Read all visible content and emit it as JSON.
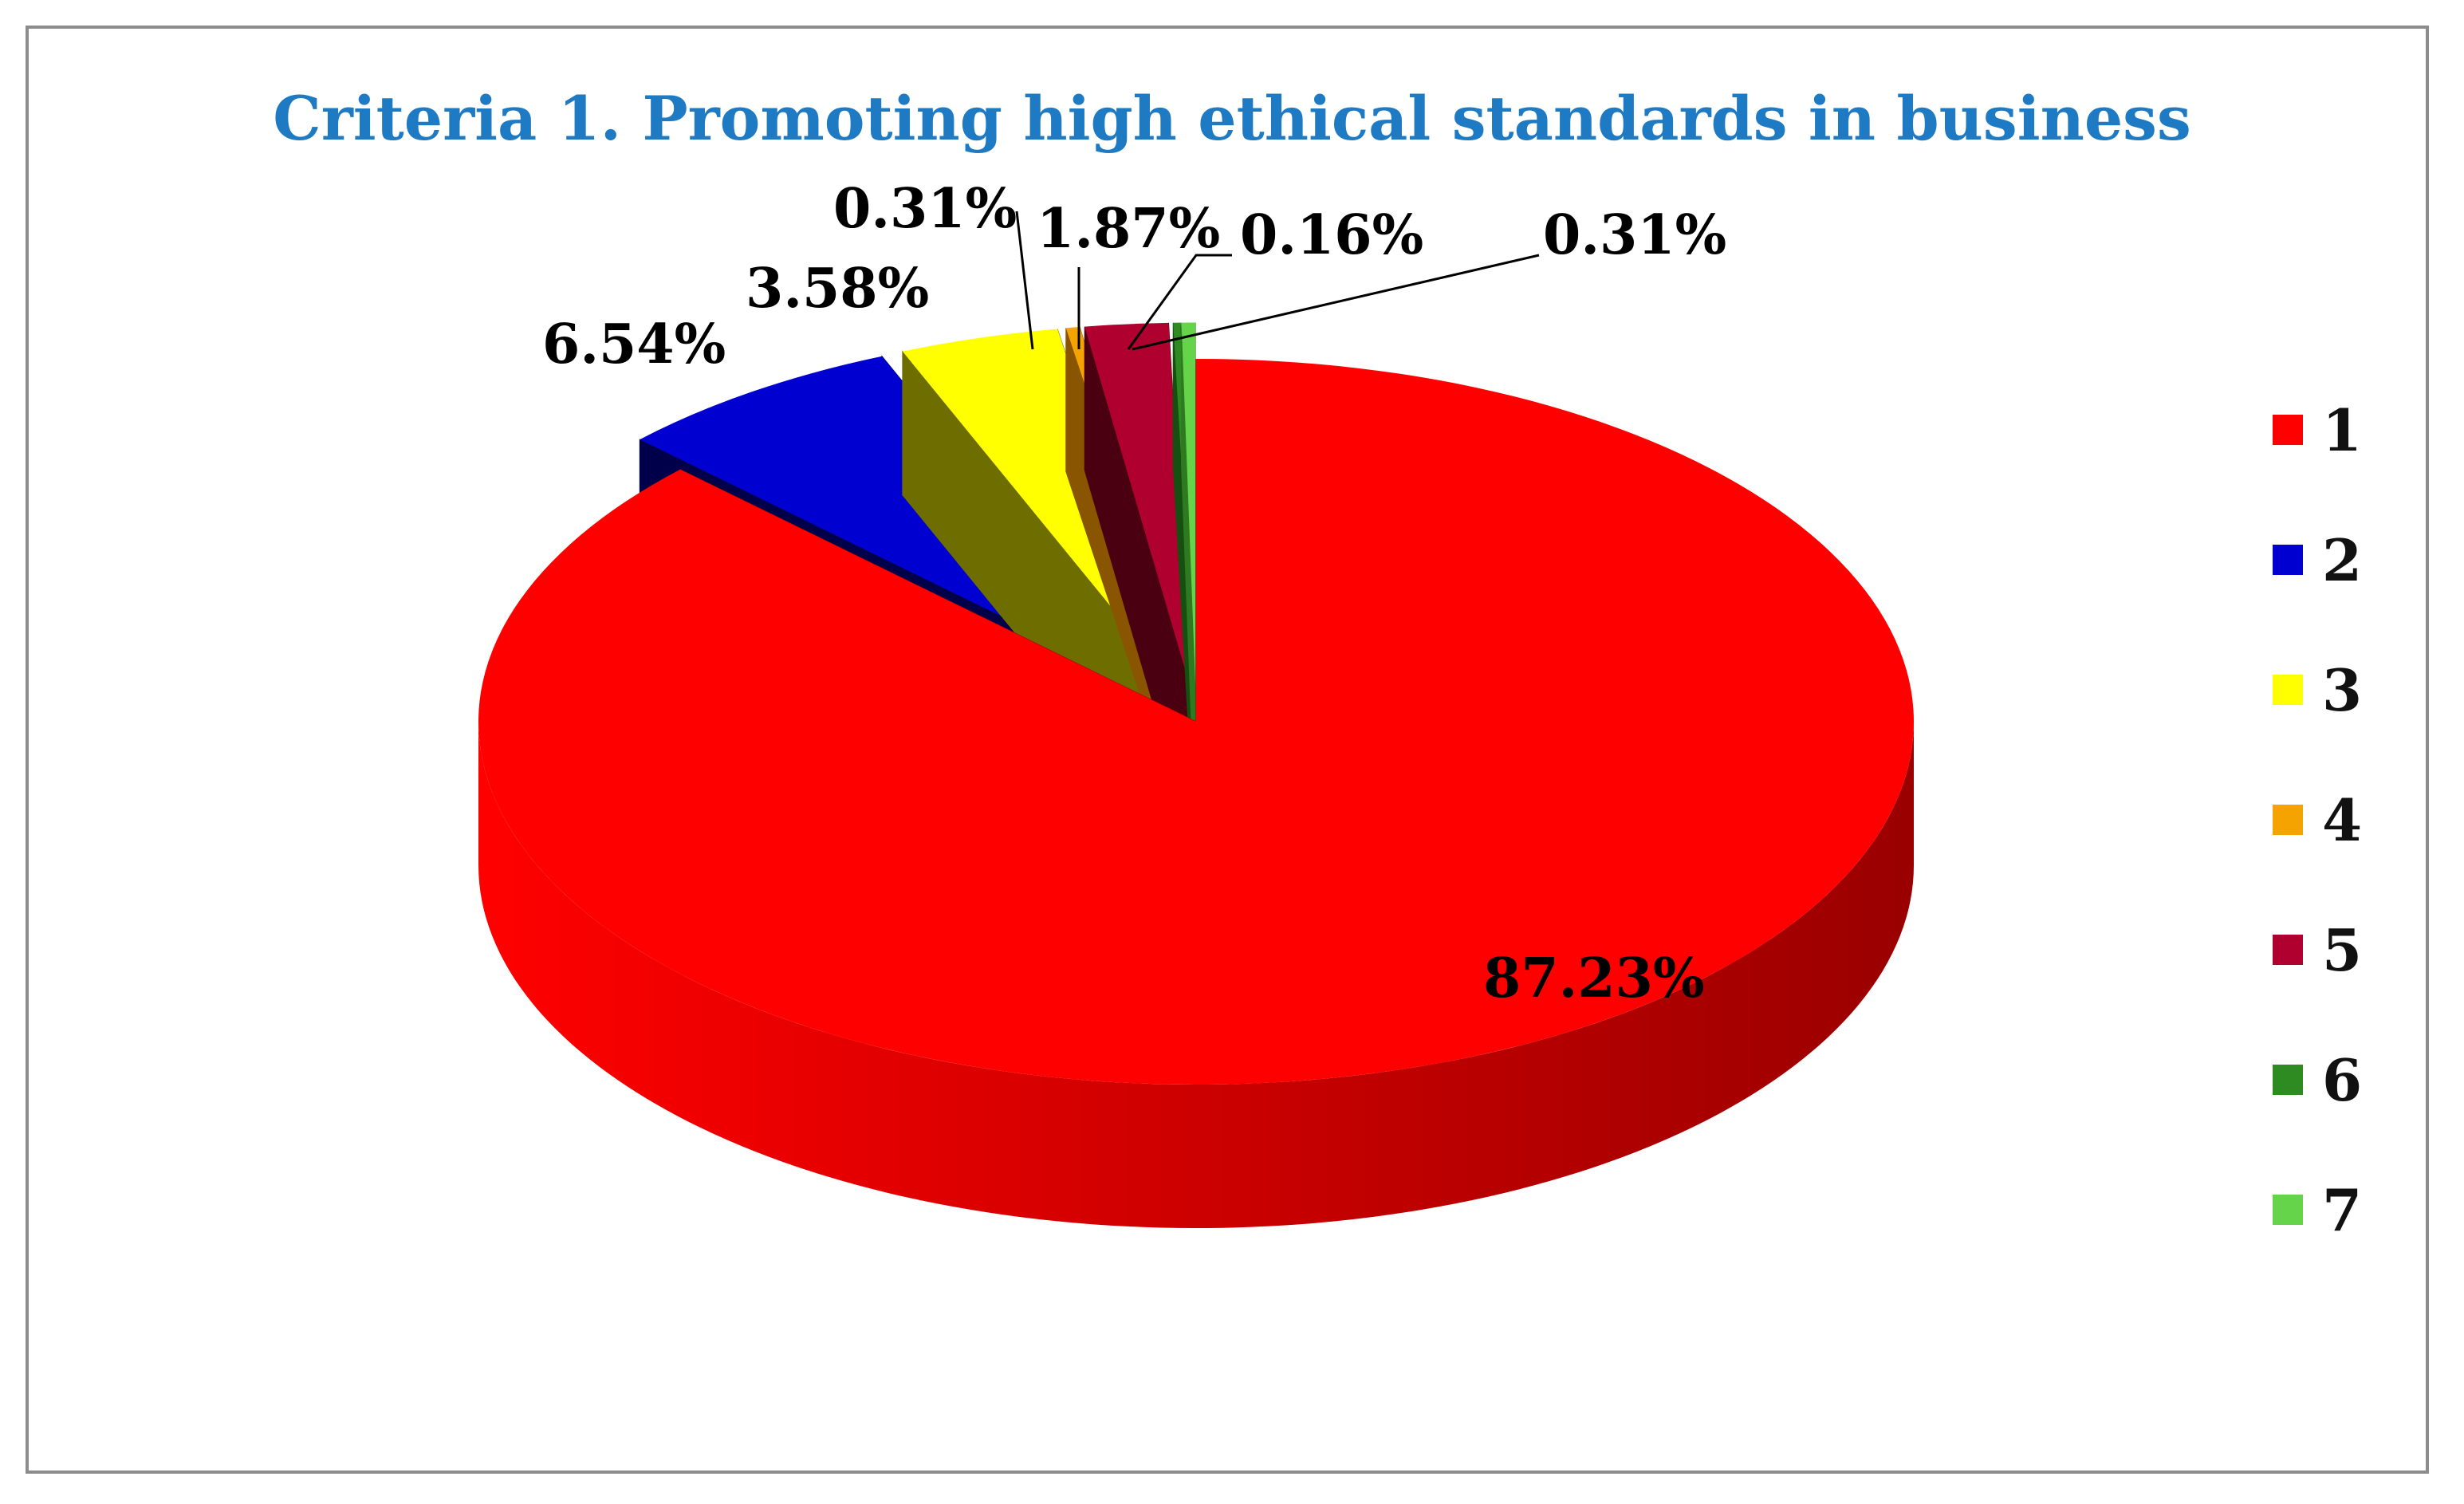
{
  "chart_data": {
    "type": "pie",
    "title": "Criteria 1. Promoting high ethical standards in business",
    "categories": [
      "1",
      "2",
      "3",
      "4",
      "5",
      "6",
      "7"
    ],
    "values": [
      87.23,
      6.54,
      3.58,
      0.31,
      1.87,
      0.16,
      0.31
    ],
    "value_labels": [
      "87.23%",
      "6.54%",
      "3.58%",
      "0.31%",
      "1.87%",
      "0.16%",
      "0.31%"
    ],
    "colors": [
      "#ff0000",
      "#0000d0",
      "#ffff00",
      "#f4a300",
      "#b00030",
      "#2e8b22",
      "#66d44a"
    ],
    "side_colors": [
      "#9a0000",
      "#00004a",
      "#6e6e00",
      "#8a5500",
      "#4a0010",
      "#155010",
      "#2f7a20"
    ],
    "exploded": true,
    "three_d": true,
    "legend": "right"
  }
}
